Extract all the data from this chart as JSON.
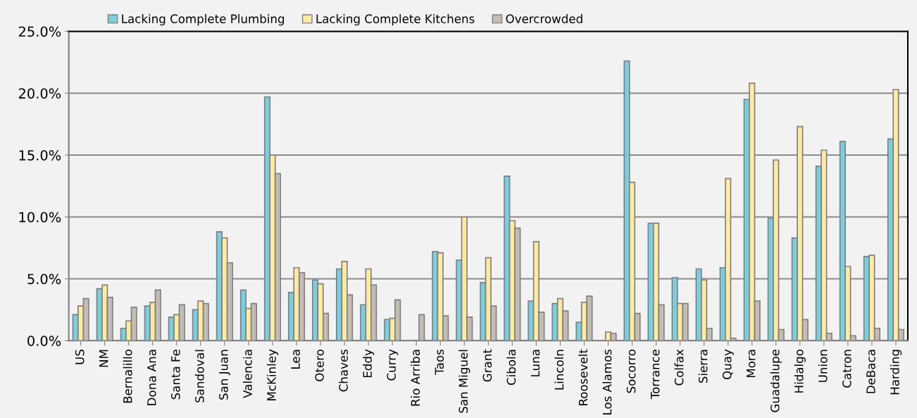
{
  "chart_data": {
    "type": "bar",
    "categories": [
      "US",
      "NM",
      "Bernalillo",
      "Dona Ana",
      "Santa Fe",
      "Sandoval",
      "San Juan",
      "Valencia",
      "McKinley",
      "Lea",
      "Otero",
      "Chaves",
      "Eddy",
      "Curry",
      "Rio Arriba",
      "Taos",
      "San Miguel",
      "Grant",
      "Cibola",
      "Luna",
      "Lincoln",
      "Roosevelt",
      "Los Alamos",
      "Socorro",
      "Torrance",
      "Colfax",
      "Sierra",
      "Quay",
      "Mora",
      "Guadalupe",
      "Hidalgo",
      "Union",
      "Catron",
      "DeBaca",
      "Harding"
    ],
    "series": [
      {
        "name": "Lacking Complete Plumbing",
        "color": "#78cfe0",
        "values": [
          2.1,
          4.2,
          1.0,
          2.8,
          1.9,
          2.5,
          8.8,
          4.1,
          19.7,
          3.9,
          4.9,
          5.8,
          2.9,
          1.7,
          null,
          7.2,
          6.5,
          4.7,
          13.3,
          3.2,
          3.0,
          1.5,
          null,
          22.6,
          9.5,
          5.1,
          5.8,
          5.9,
          19.5,
          9.9,
          8.3,
          14.1,
          16.1,
          6.8,
          16.3
        ]
      },
      {
        "name": "Lacking Complete Kitchens",
        "color": "#ffeba0",
        "values": [
          2.8,
          4.5,
          1.6,
          3.1,
          2.1,
          3.2,
          8.3,
          2.6,
          15.0,
          5.9,
          4.6,
          6.4,
          5.8,
          1.8,
          null,
          7.1,
          10.0,
          6.7,
          9.7,
          8.0,
          3.4,
          3.1,
          0.7,
          12.8,
          9.5,
          3.0,
          4.9,
          13.1,
          20.8,
          14.6,
          17.3,
          15.4,
          6.0,
          6.9,
          20.3
        ]
      },
      {
        "name": "Overcrowded",
        "color": "#c4bdb3",
        "values": [
          3.4,
          3.5,
          2.7,
          4.1,
          2.9,
          3.0,
          6.3,
          3.0,
          13.5,
          5.5,
          2.2,
          3.7,
          4.5,
          3.3,
          2.1,
          2.0,
          1.9,
          2.8,
          9.1,
          2.3,
          2.4,
          3.6,
          0.6,
          2.2,
          2.9,
          3.0,
          1.0,
          0.2,
          3.2,
          0.9,
          1.7,
          0.6,
          0.4,
          1.0,
          0.9
        ]
      }
    ],
    "ylim": [
      0,
      25
    ],
    "yticks": [
      {
        "value": 0,
        "label": "0.0%"
      },
      {
        "value": 5,
        "label": "5.0%"
      },
      {
        "value": 10,
        "label": "10.0%"
      },
      {
        "value": 15,
        "label": "15.0%"
      },
      {
        "value": 20,
        "label": "20.0%"
      },
      {
        "value": 25,
        "label": "25.0%"
      }
    ],
    "grid": "y",
    "legend": "top"
  }
}
